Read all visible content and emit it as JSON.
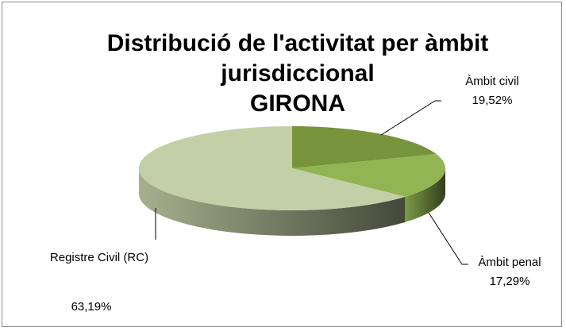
{
  "chart_data": {
    "type": "pie3d",
    "title": "Distribució de l'activitat per àmbit jurisdiccional\nGIRONA",
    "categories": [
      "Àmbit civil",
      "Àmbit penal",
      "Registre Civil (RC)"
    ],
    "values": [
      19.52,
      17.29,
      63.19
    ],
    "value_labels": [
      "19,52%",
      "17,29%",
      "63,19%"
    ],
    "colors": [
      "#77933c",
      "#92b553",
      "#c3cfa6"
    ]
  }
}
